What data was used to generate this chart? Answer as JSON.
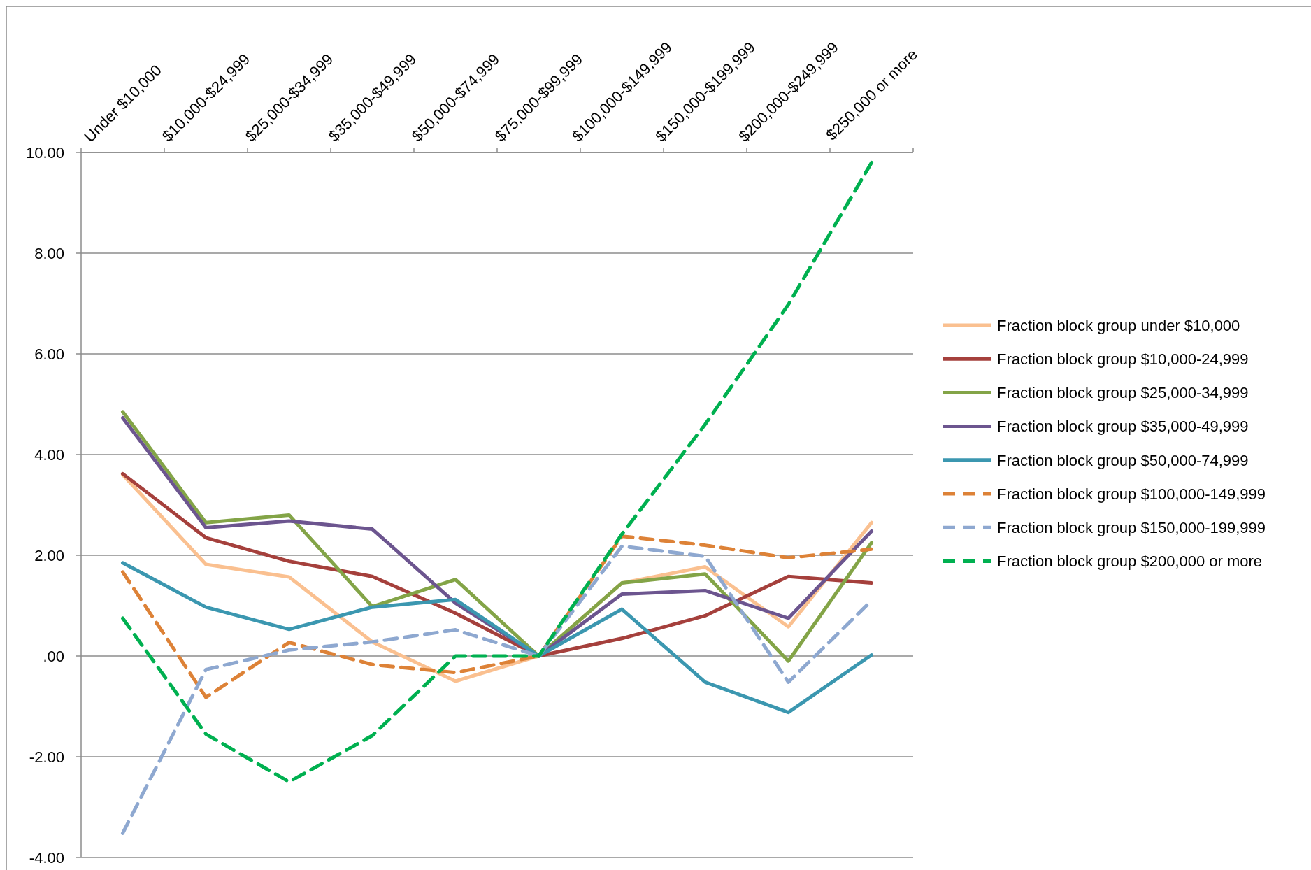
{
  "chart_data": {
    "type": "line",
    "categories": [
      "Under $10,000",
      "$10,000-$24,999",
      "$25,000-$34,999",
      "$35,000-$49,999",
      "$50,000-$74,999",
      "$75,000-$99,999",
      "$100,000-$149,999",
      "$150,000-$199,999",
      "$200,000-$249,999",
      "$250,000 or more"
    ],
    "ylim": [
      -4,
      10
    ],
    "yticks": [
      {
        "value": -4,
        "label": "-4.00"
      },
      {
        "value": -2,
        "label": "-2.00"
      },
      {
        "value": 0,
        "label": ".00"
      },
      {
        "value": 2,
        "label": "2.00"
      },
      {
        "value": 4,
        "label": "4.00"
      },
      {
        "value": 6,
        "label": "6.00"
      },
      {
        "value": 8,
        "label": "8.00"
      },
      {
        "value": 10,
        "label": "10.00"
      }
    ],
    "grid": "y",
    "legend": "right",
    "series": [
      {
        "name": "Fraction block group under $10,000",
        "color": "#fac090",
        "line_style": "solid",
        "values": [
          3.6,
          1.82,
          1.57,
          0.28,
          -0.5,
          0,
          1.45,
          1.77,
          0.58,
          2.65
        ]
      },
      {
        "name": "Fraction block group $10,000-24,999",
        "color": "#a5403c",
        "line_style": "solid",
        "values": [
          3.62,
          2.35,
          1.88,
          1.58,
          0.85,
          0,
          0.35,
          0.8,
          1.58,
          1.45
        ]
      },
      {
        "name": "Fraction block group $25,000-34,999",
        "color": "#83a447",
        "line_style": "solid",
        "values": [
          4.85,
          2.65,
          2.8,
          0.98,
          1.52,
          0,
          1.45,
          1.63,
          -0.1,
          2.25
        ]
      },
      {
        "name": "Fraction block group $35,000-49,999",
        "color": "#6c558f",
        "line_style": "solid",
        "values": [
          4.73,
          2.55,
          2.68,
          2.52,
          1.05,
          0,
          1.23,
          1.3,
          0.75,
          2.48
        ]
      },
      {
        "name": "Fraction block group $50,000-74,999",
        "color": "#3b97b0",
        "line_style": "solid",
        "values": [
          1.85,
          0.97,
          0.53,
          0.97,
          1.12,
          0,
          0.93,
          -0.52,
          -1.12,
          0.02
        ]
      },
      {
        "name": "Fraction block group $100,000-149,999",
        "color": "#dd8237",
        "line_style": "dashed",
        "values": [
          1.67,
          -0.82,
          0.27,
          -0.17,
          -0.33,
          0,
          2.38,
          2.2,
          1.95,
          2.12
        ]
      },
      {
        "name": "Fraction block group $150,000-199,999",
        "color": "#8ea8d0",
        "line_style": "dashed",
        "values": [
          -3.52,
          -0.27,
          0.12,
          0.28,
          0.52,
          0,
          2.18,
          1.98,
          -0.52,
          1.1
        ]
      },
      {
        "name": "Fraction block group $200,000 or more",
        "color": "#00b050",
        "line_style": "dashed",
        "values": [
          0.75,
          -1.55,
          -2.5,
          -1.58,
          0,
          0,
          2.42,
          4.6,
          6.98,
          9.8
        ]
      }
    ]
  }
}
